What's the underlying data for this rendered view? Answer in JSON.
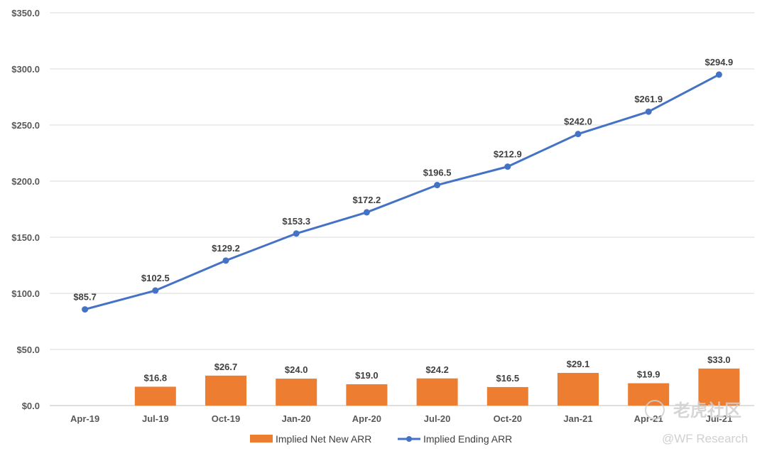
{
  "chart_data": {
    "type": "bar+line",
    "categories": [
      "Apr-19",
      "Jul-19",
      "Oct-19",
      "Jan-20",
      "Apr-20",
      "Jul-20",
      "Oct-20",
      "Jan-21",
      "Apr-21",
      "Jul-21"
    ],
    "series": [
      {
        "name": "Implied Net New ARR",
        "type": "bar",
        "color": "#ED7D31",
        "values": [
          null,
          16.8,
          26.7,
          24.0,
          19.0,
          24.2,
          16.5,
          29.1,
          19.9,
          33.0
        ],
        "labels": [
          "",
          "$16.8",
          "$26.7",
          "$24.0",
          "$19.0",
          "$24.2",
          "$16.5",
          "$29.1",
          "$19.9",
          "$33.0"
        ]
      },
      {
        "name": "Implied Ending ARR",
        "type": "line",
        "color": "#4472C4",
        "values": [
          85.7,
          102.5,
          129.2,
          153.3,
          172.2,
          196.5,
          212.9,
          242.0,
          261.9,
          294.9
        ],
        "labels": [
          "$85.7",
          "$102.5",
          "$129.2",
          "$153.3",
          "$172.2",
          "$196.5",
          "$212.9",
          "$242.0",
          "$261.9",
          "$294.9"
        ]
      }
    ],
    "ylim": [
      0,
      350
    ],
    "yticks": [
      0,
      50,
      100,
      150,
      200,
      250,
      300,
      350
    ],
    "ytick_labels": [
      "$0.0",
      "$50.0",
      "$100.0",
      "$150.0",
      "$200.0",
      "$250.0",
      "$300.0",
      "$350.0"
    ],
    "grid": true,
    "legend": "bottom-center",
    "title": "",
    "xlabel": "",
    "ylabel": ""
  },
  "watermark": {
    "brand": "老虎社区",
    "handle": "@WF Research"
  }
}
